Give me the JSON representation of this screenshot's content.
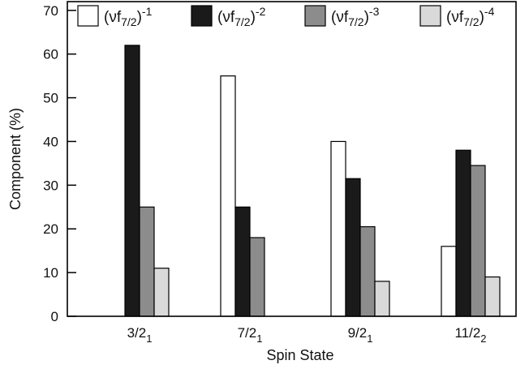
{
  "chart_data": {
    "type": "bar",
    "xlabel": "Spin State",
    "ylabel": "Component  (%)",
    "ylim": [
      0,
      72
    ],
    "yticks": [
      0,
      10,
      20,
      30,
      40,
      50,
      60,
      70
    ],
    "grid": false,
    "legend_position": "top",
    "categories": [
      {
        "base": "3/2",
        "sub": "1"
      },
      {
        "base": "7/2",
        "sub": "1"
      },
      {
        "base": "9/2",
        "sub": "1"
      },
      {
        "base": "11/2",
        "sub": "2"
      }
    ],
    "series": [
      {
        "name": {
          "base": "(νf",
          "sub": "7/2",
          "close": ")",
          "sup": "-1"
        },
        "color": "#ffffff",
        "values": [
          0,
          55,
          40,
          16
        ]
      },
      {
        "name": {
          "base": "(νf",
          "sub": "7/2",
          "close": ")",
          "sup": "-2"
        },
        "color": "#1a1a1a",
        "values": [
          62,
          25,
          31.5,
          38
        ]
      },
      {
        "name": {
          "base": "(νf",
          "sub": "7/2",
          "close": ")",
          "sup": "-3"
        },
        "color": "#8c8c8c",
        "values": [
          25,
          18,
          20.5,
          34.5
        ]
      },
      {
        "name": {
          "base": "(νf",
          "sub": "7/2",
          "close": ")",
          "sup": "-4"
        },
        "color": "#d9d9d9",
        "values": [
          11,
          0,
          8,
          9
        ]
      }
    ]
  }
}
